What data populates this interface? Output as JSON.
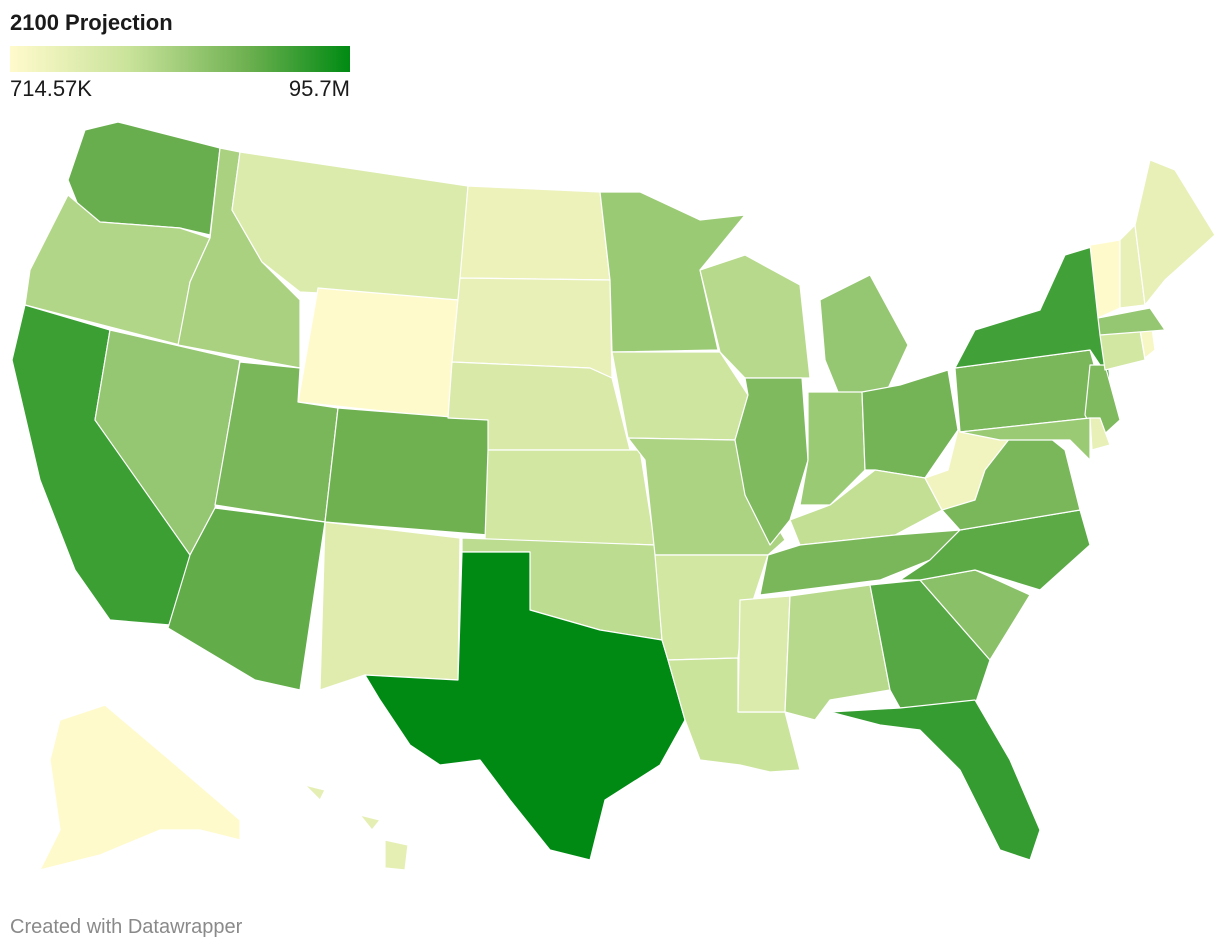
{
  "legend": {
    "title": "2100 Projection",
    "min_label": "714.57K",
    "max_label": "95.7M",
    "colors": [
      "#fffacc",
      "#c9e39a",
      "#6db050",
      "#008a13"
    ]
  },
  "credit": "Created with Datawrapper",
  "map": {
    "type": "choropleth",
    "region": "United States",
    "states": [
      {
        "id": "WA",
        "name": "Washington",
        "level": 0.68
      },
      {
        "id": "OR",
        "name": "Oregon",
        "level": 0.42
      },
      {
        "id": "CA",
        "name": "California",
        "level": 0.82
      },
      {
        "id": "ID",
        "name": "Idaho",
        "level": 0.45
      },
      {
        "id": "NV",
        "name": "Nevada",
        "level": 0.52
      },
      {
        "id": "MT",
        "name": "Montana",
        "level": 0.22
      },
      {
        "id": "WY",
        "name": "Wyoming",
        "level": 0.0
      },
      {
        "id": "UT",
        "name": "Utah",
        "level": 0.62
      },
      {
        "id": "AZ",
        "name": "Arizona",
        "level": 0.7
      },
      {
        "id": "CO",
        "name": "Colorado",
        "level": 0.66
      },
      {
        "id": "NM",
        "name": "New Mexico",
        "level": 0.2
      },
      {
        "id": "ND",
        "name": "North Dakota",
        "level": 0.12
      },
      {
        "id": "SD",
        "name": "South Dakota",
        "level": 0.14
      },
      {
        "id": "NE",
        "name": "Nebraska",
        "level": 0.24
      },
      {
        "id": "KS",
        "name": "Kansas",
        "level": 0.28
      },
      {
        "id": "OK",
        "name": "Oklahoma",
        "level": 0.38
      },
      {
        "id": "TX",
        "name": "Texas",
        "level": 1.0
      },
      {
        "id": "MN",
        "name": "Minnesota",
        "level": 0.5
      },
      {
        "id": "IA",
        "name": "Iowa",
        "level": 0.3
      },
      {
        "id": "MO",
        "name": "Missouri",
        "level": 0.44
      },
      {
        "id": "AR",
        "name": "Arkansas",
        "level": 0.28
      },
      {
        "id": "LA",
        "name": "Louisiana",
        "level": 0.32
      },
      {
        "id": "WI",
        "name": "Wisconsin",
        "level": 0.4
      },
      {
        "id": "IL",
        "name": "Illinois",
        "level": 0.6
      },
      {
        "id": "MI",
        "name": "Michigan",
        "level": 0.52
      },
      {
        "id": "IN",
        "name": "Indiana",
        "level": 0.5
      },
      {
        "id": "OH",
        "name": "Ohio",
        "level": 0.64
      },
      {
        "id": "KY",
        "name": "Kentucky",
        "level": 0.36
      },
      {
        "id": "TN",
        "name": "Tennessee",
        "level": 0.62
      },
      {
        "id": "MS",
        "name": "Mississippi",
        "level": 0.22
      },
      {
        "id": "AL",
        "name": "Alabama",
        "level": 0.4
      },
      {
        "id": "GA",
        "name": "Georgia",
        "level": 0.74
      },
      {
        "id": "FL",
        "name": "Florida",
        "level": 0.84
      },
      {
        "id": "SC",
        "name": "South Carolina",
        "level": 0.56
      },
      {
        "id": "NC",
        "name": "North Carolina",
        "level": 0.72
      },
      {
        "id": "VA",
        "name": "Virginia",
        "level": 0.62
      },
      {
        "id": "WV",
        "name": "West Virginia",
        "level": 0.08
      },
      {
        "id": "PA",
        "name": "Pennsylvania",
        "level": 0.62
      },
      {
        "id": "NY",
        "name": "New York",
        "level": 0.8
      },
      {
        "id": "NJ",
        "name": "New Jersey",
        "level": 0.6
      },
      {
        "id": "MD",
        "name": "Maryland",
        "level": 0.5
      },
      {
        "id": "DE",
        "name": "Delaware",
        "level": 0.14
      },
      {
        "id": "CT",
        "name": "Connecticut",
        "level": 0.28
      },
      {
        "id": "RI",
        "name": "Rhode Island",
        "level": 0.05
      },
      {
        "id": "MA",
        "name": "Massachusetts",
        "level": 0.52
      },
      {
        "id": "VT",
        "name": "Vermont",
        "level": 0.0
      },
      {
        "id": "NH",
        "name": "New Hampshire",
        "level": 0.14
      },
      {
        "id": "ME",
        "name": "Maine",
        "level": 0.14
      },
      {
        "id": "AK",
        "name": "Alaska",
        "level": 0.0
      },
      {
        "id": "HI",
        "name": "Hawaii",
        "level": 0.16
      }
    ]
  }
}
